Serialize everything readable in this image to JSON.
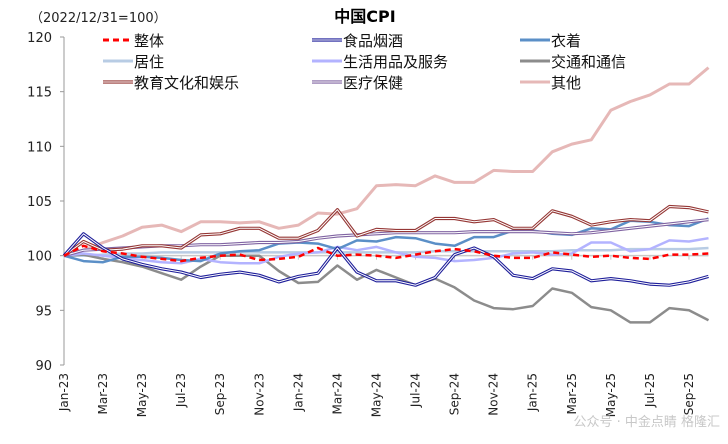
{
  "chart_data": {
    "type": "line",
    "title": "中国CPI",
    "subtitle": "（2022/12/31=100）",
    "ylim": [
      90,
      120
    ],
    "yticks": [
      90,
      95,
      100,
      105,
      110,
      115,
      120
    ],
    "grid": false,
    "legend_placement": "top",
    "x": [
      "Jan-23",
      "Feb-23",
      "Mar-23",
      "Apr-23",
      "May-23",
      "Jun-23",
      "Jul-23",
      "Aug-23",
      "Sep-23",
      "Oct-23",
      "Nov-23",
      "Dec-23",
      "Jan-24",
      "Feb-24",
      "Mar-24",
      "Apr-24",
      "May-24",
      "Jun-24",
      "Jul-24",
      "Aug-24",
      "Sep-24",
      "Oct-24",
      "Nov-24",
      "Dec-24",
      "Jan-25",
      "Feb-25",
      "Mar-25",
      "Apr-25",
      "May-25",
      "Jun-25",
      "Jul-25",
      "Aug-25",
      "Sep-25",
      "Oct-25"
    ],
    "xtick_labels": [
      "Jan-23",
      "Mar-23",
      "May-23",
      "Jul-23",
      "Sep-23",
      "Nov-23",
      "Jan-24",
      "Mar-24",
      "May-24",
      "Jul-24",
      "Sep-24",
      "Nov-24",
      "Jan-25",
      "Mar-25",
      "May-25",
      "Jul-25",
      "Sep-25"
    ],
    "series": [
      {
        "name": "其他",
        "color": "#e6b8b7",
        "style": "solid",
        "values": [
          100,
          100.5,
          101.2,
          101.8,
          102.6,
          102.8,
          102.2,
          103.1,
          103.1,
          103.0,
          103.1,
          102.5,
          102.8,
          103.9,
          103.8,
          104.3,
          106.4,
          106.5,
          106.4,
          107.3,
          106.7,
          106.7,
          107.8,
          107.7,
          107.7,
          109.5,
          110.2,
          110.6,
          113.3,
          114.1,
          114.7,
          115.7,
          115.7,
          117.2
        ]
      },
      {
        "name": "居住",
        "color": "#b8cce4",
        "style": "solid",
        "values": [
          100,
          100.0,
          100.1,
          100.2,
          100.2,
          100.3,
          100.3,
          100.3,
          100.3,
          100.3,
          100.3,
          100.3,
          100.3,
          100.3,
          100.3,
          100.3,
          100.3,
          100.3,
          100.3,
          100.4,
          100.4,
          100.4,
          100.4,
          100.4,
          100.4,
          100.4,
          100.5,
          100.5,
          100.5,
          100.6,
          100.6,
          100.6,
          100.6,
          100.7
        ]
      },
      {
        "name": "交通和通信",
        "color": "#8c8c8c",
        "style": "solid",
        "values": [
          100,
          100.1,
          99.7,
          99.4,
          99.0,
          98.4,
          97.8,
          99.0,
          100.0,
          100.0,
          100.0,
          98.6,
          97.5,
          97.6,
          99.1,
          97.8,
          98.7,
          98.0,
          97.3,
          97.9,
          97.1,
          95.9,
          95.2,
          95.1,
          95.4,
          97.0,
          96.6,
          95.3,
          95.0,
          93.9,
          93.9,
          95.2,
          95.0,
          94.1
        ]
      },
      {
        "name": "生活用品及服务",
        "color": "#b3b3ff",
        "style": "solid",
        "values": [
          100,
          100.2,
          100.0,
          99.8,
          99.6,
          99.4,
          99.3,
          99.7,
          99.4,
          99.3,
          99.3,
          99.9,
          100.2,
          100.3,
          100.8,
          100.5,
          100.8,
          100.3,
          99.9,
          99.8,
          99.5,
          99.6,
          99.8,
          100.2,
          100.3,
          100.1,
          100.2,
          101.2,
          101.2,
          100.4,
          100.6,
          101.4,
          101.3,
          101.6
        ]
      },
      {
        "name": "衣着",
        "color": "#5b8fc7",
        "style": "solid",
        "values": [
          100,
          99.5,
          99.4,
          99.9,
          99.9,
          99.8,
          99.6,
          99.5,
          100.2,
          100.4,
          100.5,
          101.1,
          101.2,
          101.1,
          100.6,
          101.4,
          101.3,
          101.7,
          101.6,
          101.1,
          100.9,
          101.7,
          101.7,
          102.3,
          102.3,
          102.0,
          101.9,
          102.5,
          102.4,
          103.2,
          103.1,
          102.8,
          102.7,
          103.4
        ]
      },
      {
        "name": "医疗保健",
        "color": "#8064a2",
        "style": "double",
        "values": [
          100,
          100.5,
          100.6,
          100.7,
          100.8,
          100.9,
          100.9,
          101.0,
          101.0,
          101.1,
          101.2,
          101.2,
          101.3,
          101.6,
          101.8,
          101.9,
          102.0,
          102.1,
          102.1,
          102.1,
          102.1,
          102.2,
          102.2,
          102.2,
          102.2,
          102.1,
          102.0,
          102.1,
          102.3,
          102.5,
          102.7,
          102.9,
          103.1,
          103.3
        ]
      },
      {
        "name": "教育文化和娱乐",
        "color": "#953735",
        "style": "double",
        "values": [
          100,
          101.3,
          100.5,
          100.6,
          100.9,
          100.9,
          100.7,
          101.9,
          102.0,
          102.5,
          102.5,
          101.6,
          101.6,
          102.3,
          104.2,
          101.8,
          102.4,
          102.3,
          102.3,
          103.4,
          103.4,
          103.1,
          103.3,
          102.5,
          102.5,
          104.1,
          103.6,
          102.8,
          103.1,
          103.3,
          103.2,
          104.5,
          104.4,
          104.0
        ]
      },
      {
        "name": "食品烟酒",
        "color": "#1f1f9a",
        "style": "double",
        "values": [
          100,
          102.0,
          100.7,
          99.7,
          99.2,
          98.8,
          98.5,
          98.0,
          98.3,
          98.5,
          98.2,
          97.6,
          98.1,
          98.4,
          100.7,
          98.5,
          97.7,
          97.7,
          97.3,
          98.0,
          100.1,
          100.7,
          99.9,
          98.2,
          97.9,
          98.8,
          98.6,
          97.7,
          97.9,
          97.7,
          97.4,
          97.3,
          97.6,
          98.1
        ]
      },
      {
        "name": "整体",
        "color": "#ff0000",
        "style": "dashed",
        "values": [
          100,
          100.9,
          100.4,
          100.2,
          99.9,
          99.7,
          99.5,
          99.8,
          100.0,
          100.1,
          99.6,
          99.7,
          99.9,
          100.7,
          100.0,
          100.1,
          100.0,
          99.8,
          100.1,
          100.4,
          100.6,
          100.4,
          100.0,
          99.8,
          99.8,
          100.3,
          100.1,
          99.9,
          100.0,
          99.8,
          99.7,
          100.1,
          100.1,
          100.2
        ]
      }
    ],
    "legend_order": [
      "整体",
      "食品烟酒",
      "衣着",
      "居住",
      "生活用品及服务",
      "交通和通信",
      "教育文化和娱乐",
      "医疗保健",
      "其他"
    ]
  },
  "watermark": "公众号 · 中金点睛  格隆汇"
}
